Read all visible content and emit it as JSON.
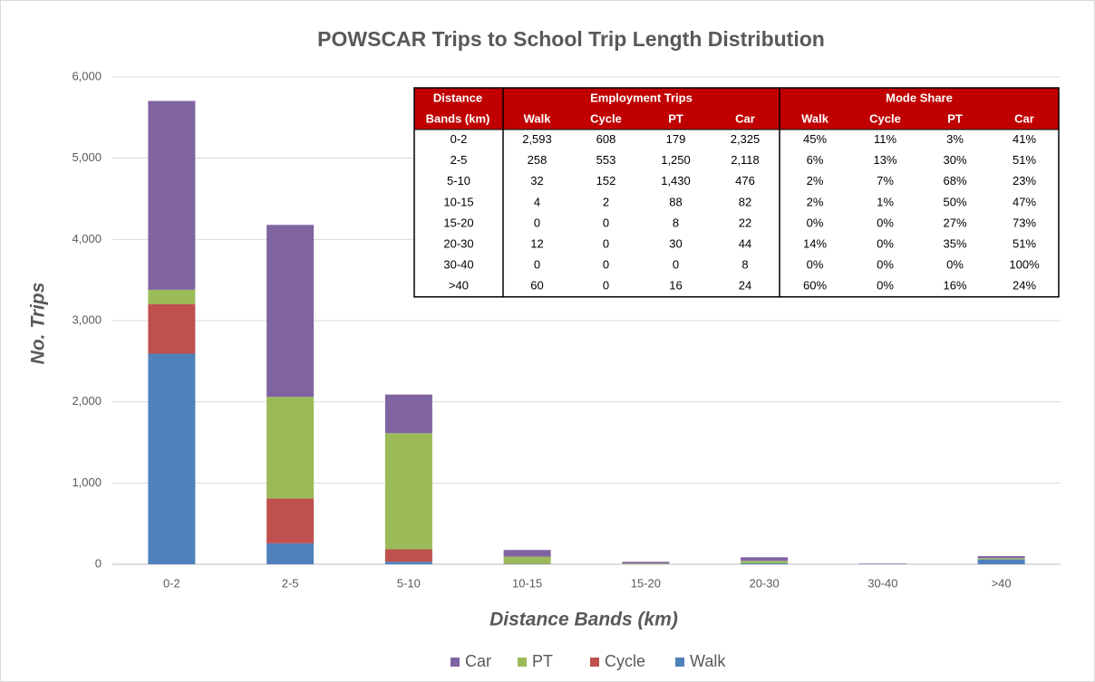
{
  "chart_data": {
    "type": "bar",
    "stacked": true,
    "title": "POWSCAR Trips to School Trip Length Distribution",
    "x_label": "Distance Bands (km)",
    "y_label": "No. Trips",
    "categories": [
      "0-2",
      "2-5",
      "5-10",
      "10-15",
      "15-20",
      "20-30",
      "30-40",
      ">40"
    ],
    "series": [
      {
        "name": "Walk",
        "color": "#4f81bd",
        "values": [
          2593,
          258,
          32,
          4,
          0,
          12,
          0,
          60
        ]
      },
      {
        "name": "Cycle",
        "color": "#c0504d",
        "values": [
          608,
          553,
          152,
          2,
          0,
          0,
          0,
          0
        ]
      },
      {
        "name": "PT",
        "color": "#9bbb59",
        "values": [
          179,
          1250,
          1430,
          88,
          8,
          30,
          0,
          16
        ]
      },
      {
        "name": "Car",
        "color": "#8064a2",
        "values": [
          2325,
          2118,
          476,
          82,
          22,
          44,
          8,
          24
        ]
      }
    ],
    "ylim": [
      0,
      6000
    ],
    "yticks": [
      0,
      {
        "value": 1000,
        "label": "1,000"
      },
      {
        "value": 2000,
        "label": "2,000"
      },
      {
        "value": 3000,
        "label": "3,000"
      },
      {
        "value": 4000,
        "label": "4,000"
      },
      {
        "value": 5000,
        "label": "5,000"
      },
      {
        "value": 6000,
        "label": "6,000"
      }
    ],
    "grid": true,
    "legend": "bottom"
  },
  "table": {
    "header": {
      "band": "Distance Bands (km)",
      "group1": "Employment Trips",
      "group2": "Mode Share",
      "columns": [
        "Walk",
        "Cycle",
        "PT",
        "Car",
        "Walk",
        "Cycle",
        "PT",
        "Car"
      ]
    },
    "rows": [
      [
        "0-2",
        "2,593",
        "608",
        "179",
        "2,325",
        "45%",
        "11%",
        "3%",
        "41%"
      ],
      [
        "2-5",
        "258",
        "553",
        "1,250",
        "2,118",
        "6%",
        "13%",
        "30%",
        "51%"
      ],
      [
        "5-10",
        "32",
        "152",
        "1,430",
        "476",
        "2%",
        "7%",
        "68%",
        "23%"
      ],
      [
        "10-15",
        "4",
        "2",
        "88",
        "82",
        "2%",
        "1%",
        "50%",
        "47%"
      ],
      [
        "15-20",
        "0",
        "0",
        "8",
        "22",
        "0%",
        "0%",
        "27%",
        "73%"
      ],
      [
        "20-30",
        "12",
        "0",
        "30",
        "44",
        "14%",
        "0%",
        "35%",
        "51%"
      ],
      [
        "30-40",
        "0",
        "0",
        "0",
        "8",
        "0%",
        "0%",
        "0%",
        "100%"
      ],
      [
        ">40",
        "60",
        "0",
        "16",
        "24",
        "60%",
        "0%",
        "16%",
        "24%"
      ]
    ]
  }
}
